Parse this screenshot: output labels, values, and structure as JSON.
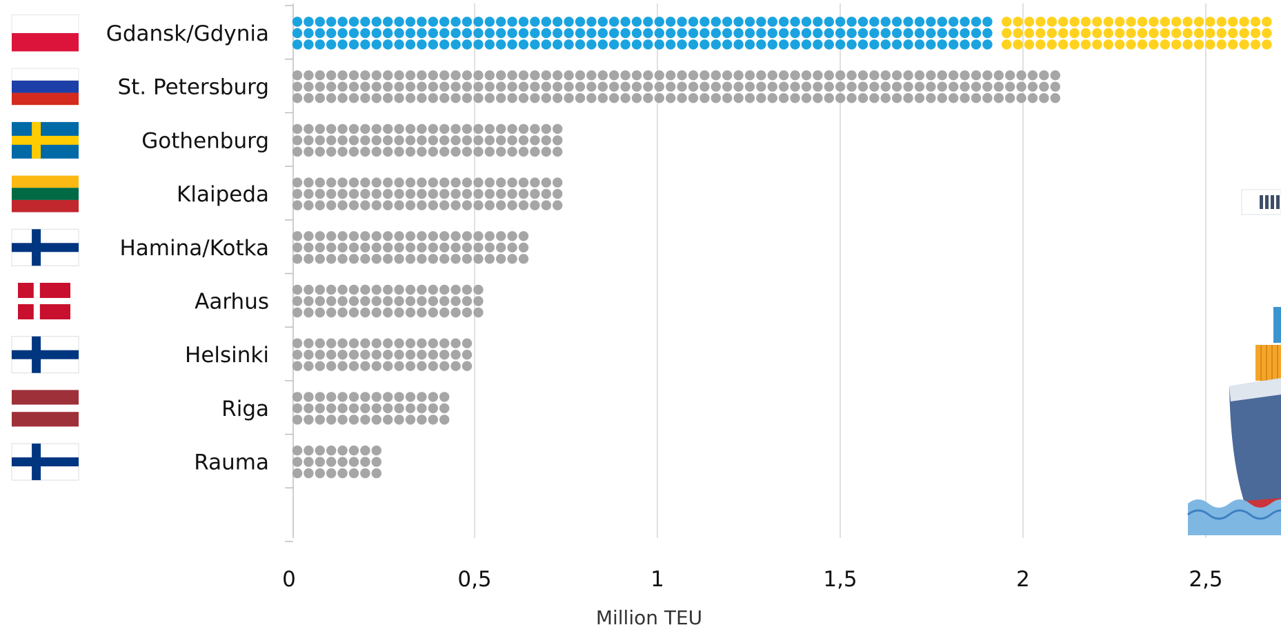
{
  "chart_data": {
    "type": "bar",
    "orientation": "horizontal",
    "style": "dot-matrix",
    "title": "",
    "xlabel": "Million TEU",
    "ylabel": "",
    "xlim": [
      0,
      2.75
    ],
    "x_ticks": [
      0,
      0.5,
      1,
      1.5,
      2,
      2.5
    ],
    "x_tick_labels": [
      "0",
      "0,5",
      "1",
      "1,5",
      "2",
      "2,5"
    ],
    "grid": true,
    "categories": [
      {
        "name": "Gdansk/Gdynia",
        "flag": "poland",
        "segments": [
          {
            "value": 1.94,
            "color": "#1aa3df"
          },
          {
            "value": 0.81,
            "color": "#ffd21f"
          }
        ]
      },
      {
        "name": "St. Petersburg",
        "flag": "russia",
        "segments": [
          {
            "value": 2.11,
            "color": "#a6a6a6"
          }
        ]
      },
      {
        "name": "Gothenburg",
        "flag": "sweden",
        "segments": [
          {
            "value": 0.75,
            "color": "#a6a6a6"
          }
        ]
      },
      {
        "name": "Klaipeda",
        "flag": "lithuania",
        "segments": [
          {
            "value": 0.75,
            "color": "#a6a6a6"
          }
        ]
      },
      {
        "name": "Hamina/Kotka",
        "flag": "finland",
        "segments": [
          {
            "value": 0.65,
            "color": "#a6a6a6"
          }
        ]
      },
      {
        "name": "Aarhus",
        "flag": "denmark",
        "segments": [
          {
            "value": 0.55,
            "color": "#a6a6a6"
          }
        ]
      },
      {
        "name": "Helsinki",
        "flag": "finland",
        "segments": [
          {
            "value": 0.52,
            "color": "#a6a6a6"
          }
        ]
      },
      {
        "name": "Riga",
        "flag": "latvia",
        "segments": [
          {
            "value": 0.45,
            "color": "#a6a6a6"
          }
        ]
      },
      {
        "name": "Rauma",
        "flag": "finland",
        "segments": [
          {
            "value": 0.26,
            "color": "#a6a6a6"
          }
        ]
      }
    ]
  },
  "decoration": {
    "icon": "container-ship-icon",
    "sea_color": "#7fb7e3"
  }
}
